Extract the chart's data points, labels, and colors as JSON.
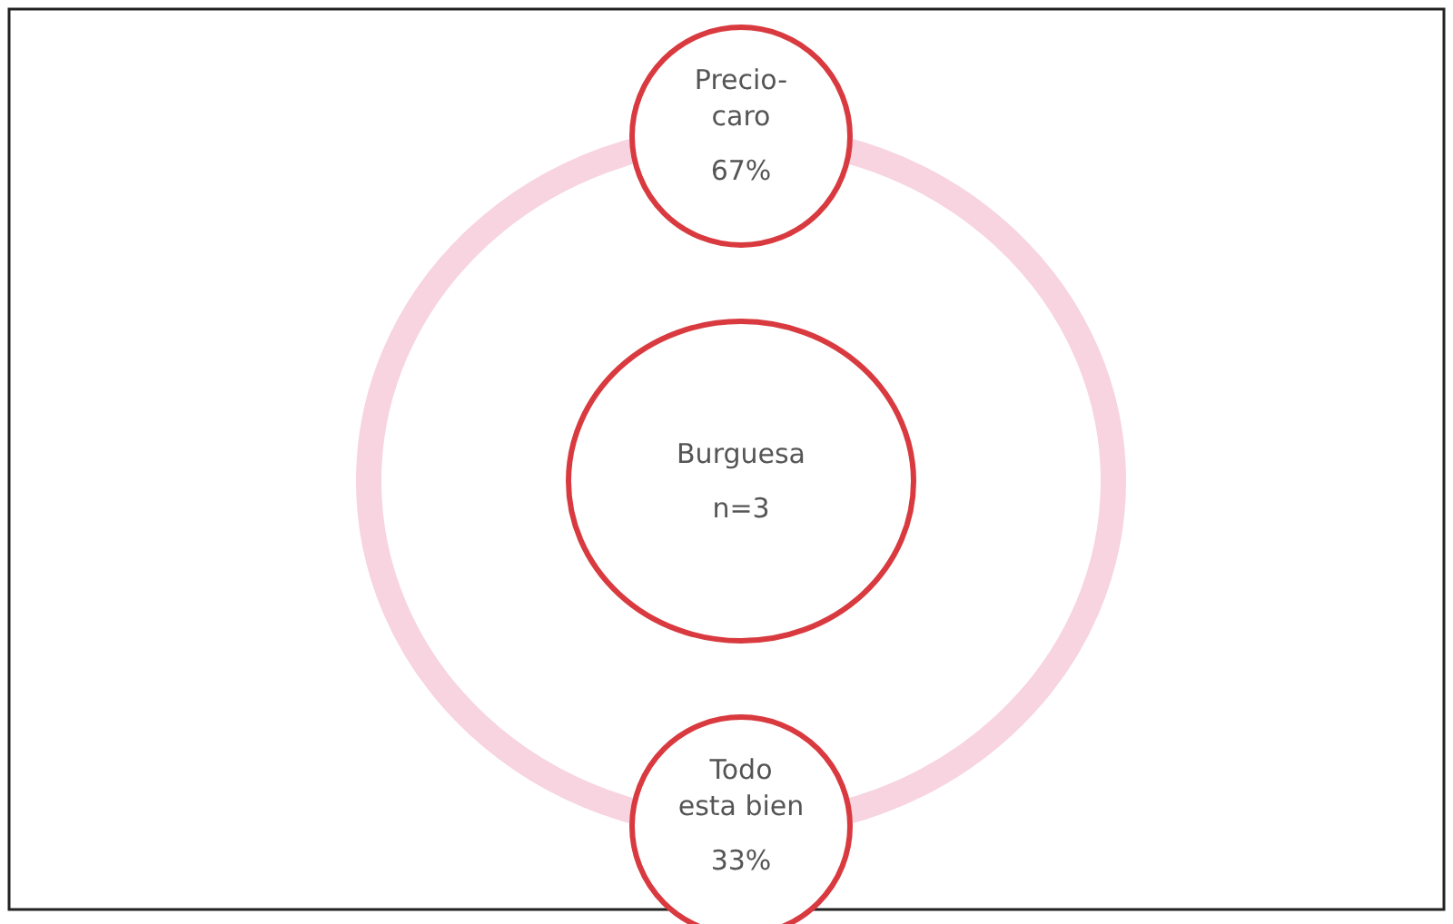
{
  "chart_data": {
    "type": "other",
    "title": "Burguesa",
    "subtitle": "n=3",
    "categories": [
      "Precio-caro",
      "Todo esta bien"
    ],
    "values": [
      67,
      33
    ],
    "value_labels": [
      "67%",
      "33%"
    ],
    "colors": [
      "#d93a3f",
      "#d93a3f"
    ],
    "color": "#f7d4df"
  }
}
